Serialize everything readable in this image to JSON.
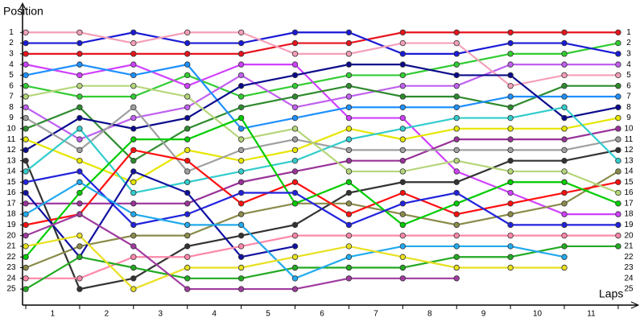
{
  "chart_data": {
    "type": "line",
    "y_label": "Position",
    "x_label": "Laps",
    "x": [
      0,
      1,
      2,
      3,
      4,
      5,
      6,
      7,
      8,
      9,
      10,
      11
    ],
    "xlim": [
      -0.06,
      11.3
    ],
    "ylim": [
      0,
      26.5
    ],
    "y_inverted": true,
    "grid": false,
    "xticks": [
      {
        "value": 0.5,
        "label": "1"
      },
      {
        "value": 1.5,
        "label": "2"
      },
      {
        "value": 2.5,
        "label": "3"
      },
      {
        "value": 3.5,
        "label": "4"
      },
      {
        "value": 4.5,
        "label": "5"
      },
      {
        "value": 5.5,
        "label": "6"
      },
      {
        "value": 6.5,
        "label": "7"
      },
      {
        "value": 7.5,
        "label": "8"
      },
      {
        "value": 8.5,
        "label": "9"
      },
      {
        "value": 9.5,
        "label": "10"
      },
      {
        "value": 10.5,
        "label": "11"
      }
    ],
    "yticks": [
      1,
      2,
      3,
      4,
      5,
      6,
      7,
      8,
      9,
      10,
      11,
      12,
      13,
      14,
      15,
      16,
      17,
      18,
      19,
      20,
      21,
      22,
      23,
      24,
      25
    ],
    "series": [
      {
        "color": "#e8141e",
        "values": [
          3,
          3,
          3,
          3,
          3,
          2,
          2,
          1,
          1,
          1,
          1,
          1
        ]
      },
      {
        "color": "#33cc33",
        "values": [
          6,
          7,
          7,
          5,
          7,
          6,
          5,
          5,
          4,
          3,
          3,
          2
        ]
      },
      {
        "color": "#1a1ad6",
        "values": [
          2,
          2,
          1,
          2,
          2,
          1,
          1,
          3,
          3,
          2,
          2,
          3
        ]
      },
      {
        "color": "#d040ff",
        "values": [
          4,
          5,
          4,
          6,
          4,
          4,
          9,
          9,
          14,
          16,
          18,
          18
        ]
      },
      {
        "color": "#c060f0",
        "values": [
          8,
          11,
          9,
          8,
          5,
          8,
          7,
          6,
          6,
          4,
          4,
          4
        ]
      },
      {
        "color": "#f4a0b8",
        "values": [
          1,
          1,
          2,
          1,
          1,
          3,
          3,
          2,
          2,
          6,
          5,
          5
        ]
      },
      {
        "color": "#2e8b2e",
        "values": [
          10,
          8,
          13,
          10,
          8,
          7,
          6,
          7,
          7,
          8,
          6,
          6
        ]
      },
      {
        "color": "#1e90ff",
        "values": [
          5,
          4,
          5,
          4,
          10,
          9,
          8,
          8,
          8,
          7,
          7,
          7
        ]
      },
      {
        "color": "#0a0a8c",
        "values": [
          12,
          9,
          10,
          9,
          6,
          5,
          4,
          4,
          5,
          5,
          9,
          8
        ]
      },
      {
        "color": "#e6e600",
        "values": [
          11,
          13,
          15,
          12,
          13,
          12,
          10,
          11,
          10,
          10,
          10,
          9
        ]
      },
      {
        "color": "#993399",
        "values": [
          17,
          17,
          17,
          17,
          15,
          14,
          13,
          13,
          11,
          11,
          11,
          10
        ]
      },
      {
        "color": "#a0a0a0",
        "values": [
          9,
          12,
          8,
          14,
          12,
          11,
          12,
          12,
          12,
          12,
          12,
          11
        ]
      },
      {
        "color": "#333333",
        "values": [
          13,
          25,
          24,
          21,
          20,
          19,
          16,
          15,
          15,
          13,
          13,
          12
        ]
      },
      {
        "color": "#33cccc",
        "values": [
          14,
          10,
          16,
          15,
          14,
          13,
          11,
          10,
          9,
          9,
          8,
          13
        ]
      },
      {
        "color": "#8b8b4b",
        "values": [
          23,
          21,
          20,
          20,
          18,
          17,
          17,
          18,
          19,
          18,
          17,
          14
        ]
      },
      {
        "color": "#ff1010",
        "values": [
          19,
          18,
          12,
          13,
          17,
          15,
          18,
          16,
          18,
          17,
          16,
          15
        ]
      },
      {
        "color": "#b5d67a",
        "values": [
          7,
          6,
          6,
          7,
          11,
          10,
          14,
          14,
          13,
          14,
          14,
          16
        ]
      },
      {
        "color": "#00cc00",
        "values": [
          22,
          16,
          11,
          11,
          9,
          17,
          15,
          19,
          17,
          15,
          15,
          17
        ]
      },
      {
        "color": "#2222dd",
        "values": [
          15,
          14,
          19,
          18,
          16,
          16,
          19,
          17,
          16,
          19,
          19,
          19
        ]
      },
      {
        "color": "#1010a0",
        "values": [
          16,
          22,
          14,
          16,
          22,
          21,
          null,
          null,
          null,
          null,
          null,
          null
        ]
      },
      {
        "color": "#ff88aa",
        "values": [
          24,
          24,
          22,
          22,
          21,
          20,
          20,
          20,
          20,
          20,
          20,
          20
        ]
      },
      {
        "color": "#22aa22",
        "values": [
          25,
          22,
          23,
          24,
          24,
          23,
          23,
          23,
          22,
          22,
          21,
          21
        ]
      },
      {
        "color": "#22aaee",
        "values": [
          18,
          15,
          18,
          19,
          19,
          24,
          22,
          21,
          21,
          21,
          22,
          null
        ]
      },
      {
        "color": "#e8e020",
        "values": [
          21,
          20,
          25,
          23,
          23,
          22,
          21,
          22,
          23,
          23,
          23,
          null
        ]
      },
      {
        "color": "#a03ca0",
        "values": [
          20,
          18,
          21,
          25,
          25,
          25,
          24,
          24,
          24,
          null,
          null,
          null
        ]
      }
    ]
  }
}
